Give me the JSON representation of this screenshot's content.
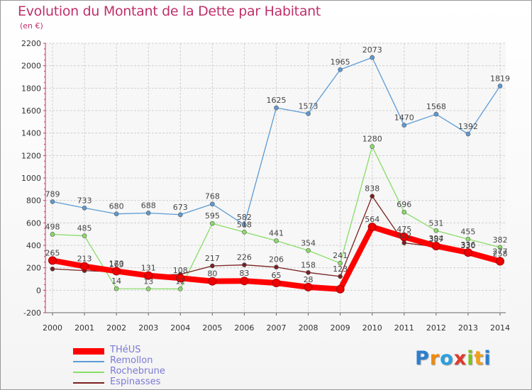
{
  "header": {
    "title": "Evolution du Montant de la Dette par Habitant",
    "subtitle": "(en €)"
  },
  "logo": {
    "text": "Proxiti",
    "letters": [
      {
        "ch": "P",
        "color": "#2a7fd0"
      },
      {
        "ch": "r",
        "color": "#f08a10"
      },
      {
        "ch": "o",
        "color": "#2aa0e0"
      },
      {
        "ch": "x",
        "color": "#e03a2a"
      },
      {
        "ch": "i",
        "color": "#80c020"
      },
      {
        "ch": "t",
        "color": "#f0a020"
      },
      {
        "ch": "i",
        "color": "#2a7fd0"
      }
    ]
  },
  "chart_data": {
    "type": "line",
    "title": "Evolution du Montant de la Dette par Habitant",
    "subtitle": "(en €)",
    "x": [
      "2000",
      "2001",
      "2002",
      "2003",
      "2004",
      "2005",
      "2006",
      "2007",
      "2008",
      "2009",
      "2010",
      "2011",
      "2012",
      "2013",
      "2014"
    ],
    "ylim": [
      -200,
      2200
    ],
    "yticks": [
      "-200",
      "0",
      "200",
      "400",
      "600",
      "800",
      "1000",
      "1200",
      "1400",
      "1600",
      "1800",
      "2000",
      "2200"
    ],
    "grid": true,
    "legend_position": "bottom-left",
    "series": [
      {
        "name": "THéUS",
        "color": "#ff0000",
        "values": [
          265,
          213,
          170,
          131,
          108,
          80,
          83,
          65,
          28,
          10,
          564,
          475,
          394,
          336,
          258
        ],
        "labels": [
          "265",
          "213",
          "170",
          "131",
          "108",
          "80",
          "83",
          "65",
          "28",
          "",
          "564",
          "475",
          "394",
          "336",
          "258"
        ]
      },
      {
        "name": "Remollon",
        "color": "#5b9bd5",
        "values": [
          789,
          733,
          680,
          688,
          673,
          768,
          582,
          1625,
          1573,
          1965,
          2073,
          1470,
          1568,
          1392,
          1819
        ],
        "labels": [
          "789",
          "733",
          "680",
          "688",
          "673",
          "768",
          "582",
          "1625",
          "1573",
          "1965",
          "2073",
          "1470",
          "1568",
          "1392",
          "1819"
        ]
      },
      {
        "name": "Rochebrune",
        "color": "#88dd66",
        "values": [
          498,
          485,
          14,
          13,
          12,
          595,
          518,
          441,
          354,
          241,
          1280,
          696,
          531,
          455,
          382
        ],
        "labels": [
          "498",
          "485",
          "14",
          "13",
          "12",
          "595",
          "518",
          "441",
          "354",
          "241",
          "1280",
          "696",
          "531",
          "455",
          "382"
        ]
      },
      {
        "name": "Espinasses",
        "color": "#7a2020",
        "values": [
          190,
          175,
          163,
          131,
          142,
          217,
          226,
          206,
          158,
          123,
          838,
          422,
          387,
          330,
          277
        ],
        "labels": [
          "",
          "",
          "163",
          "",
          "",
          "217",
          "226",
          "206",
          "158",
          "123",
          "838",
          "422",
          "387",
          "330",
          "277"
        ]
      }
    ]
  }
}
